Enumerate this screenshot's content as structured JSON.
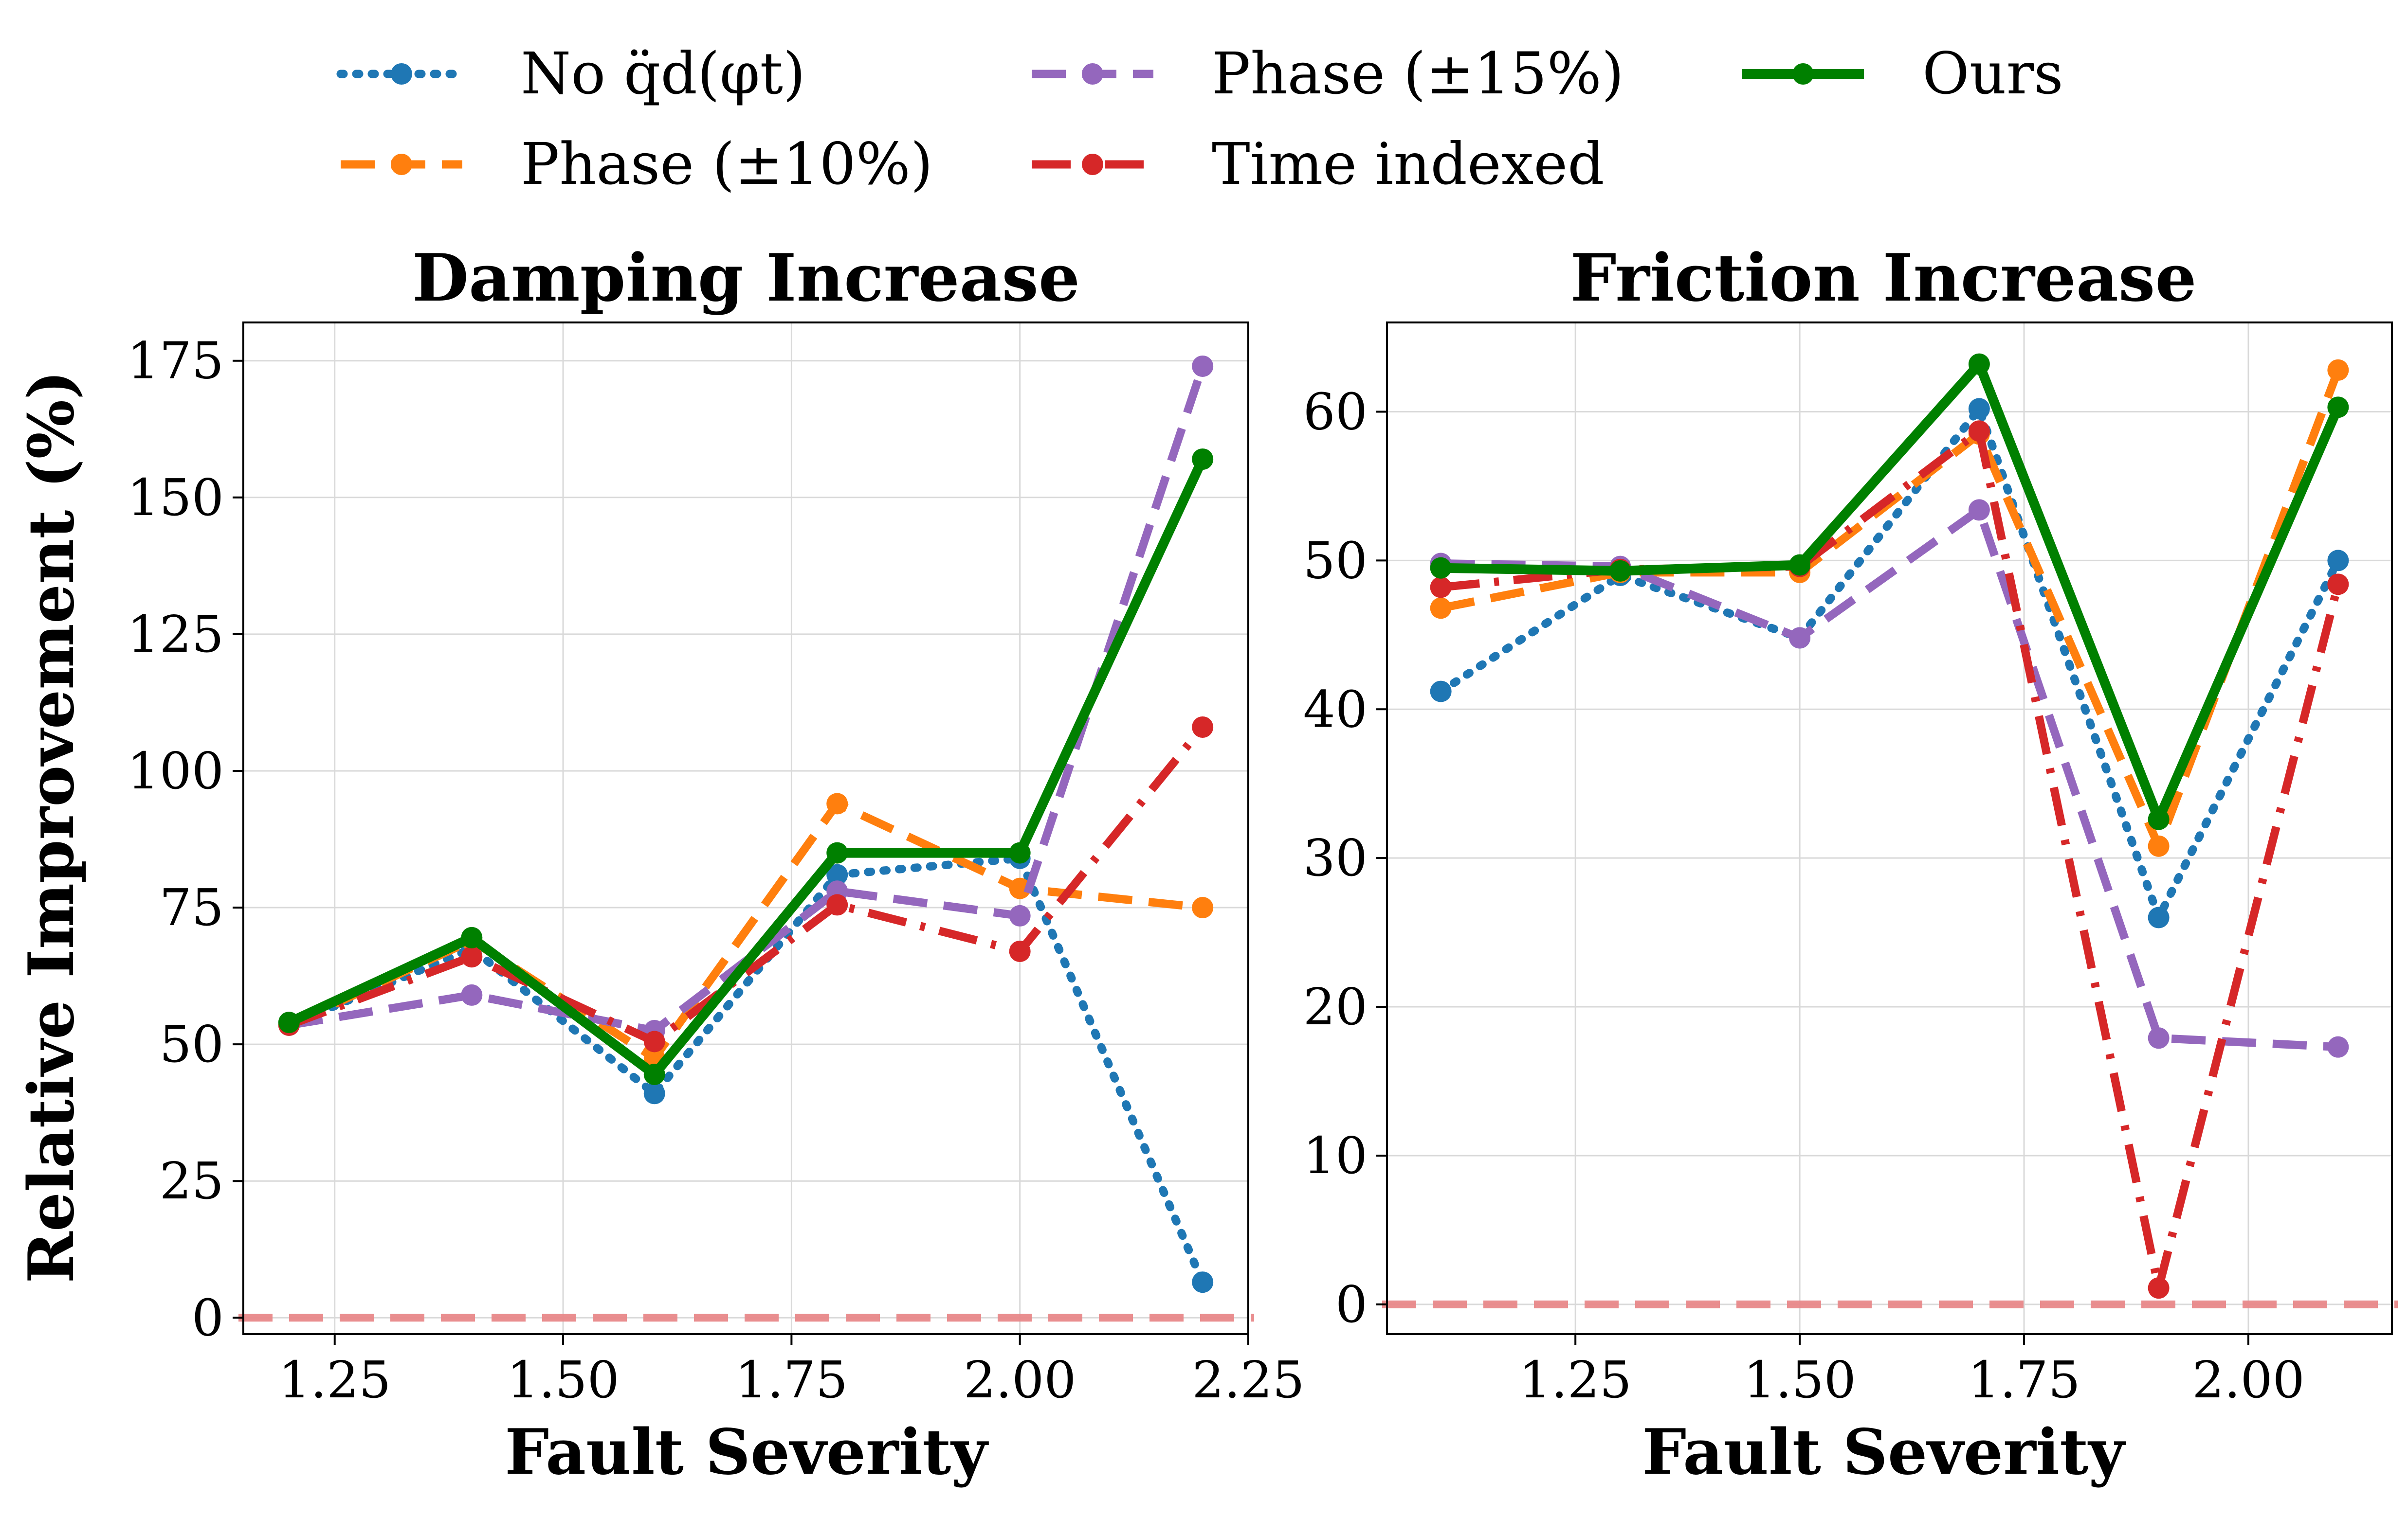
{
  "legend": [
    {
      "label": "No q̈d(φt)",
      "color": "#1f77b4",
      "dash": "dotted"
    },
    {
      "label": "Phase (±10%)",
      "color": "#ff7f0e",
      "dash": "dashed"
    },
    {
      "label": "Phase (±15%)",
      "color": "#9467bd",
      "dash": "dashed"
    },
    {
      "label": "Time indexed",
      "color": "#d62728",
      "dash": "dashdot"
    },
    {
      "label": "Ours",
      "color": "#008000",
      "dash": "solid"
    }
  ],
  "shared": {
    "ylabel": "Relative Improvement (%)",
    "baseline_value": 0,
    "baseline_color": "#e8888a"
  },
  "chart_data": [
    {
      "type": "line",
      "title": "Damping Increase",
      "xlabel": "Fault Severity",
      "ylabel": "Relative Improvement (%)",
      "xlim": [
        1.15,
        2.25
      ],
      "ylim": [
        -3,
        182
      ],
      "xticks": [
        1.25,
        1.5,
        1.75,
        2.0,
        2.25
      ],
      "xtick_labels": [
        "1.25",
        "1.50",
        "1.75",
        "2.00",
        "2.25"
      ],
      "yticks": [
        0,
        25,
        50,
        75,
        100,
        125,
        150,
        175
      ],
      "ytick_labels": [
        "0",
        "25",
        "50",
        "75",
        "100",
        "125",
        "150",
        "175"
      ],
      "x": [
        1.2,
        1.4,
        1.6,
        1.8,
        2.0,
        2.2
      ],
      "series": [
        {
          "name": "No q̈d(φt)",
          "values": [
            53.5,
            67.5,
            41.0,
            81.0,
            84.0,
            6.5
          ]
        },
        {
          "name": "Phase (±10%)",
          "values": [
            53.5,
            69.0,
            47.5,
            94.0,
            78.5,
            75.0
          ]
        },
        {
          "name": "Phase (±15%)",
          "values": [
            53.5,
            59.0,
            52.5,
            78.0,
            73.5,
            174.0
          ]
        },
        {
          "name": "Time indexed",
          "values": [
            53.5,
            66.0,
            50.5,
            75.5,
            67.0,
            108.0
          ]
        },
        {
          "name": "Ours",
          "values": [
            54.0,
            69.5,
            44.5,
            85.0,
            85.0,
            157.0
          ]
        }
      ]
    },
    {
      "type": "line",
      "title": "Friction Increase",
      "xlabel": "Fault Severity",
      "ylabel": "",
      "xlim": [
        1.04,
        2.16
      ],
      "ylim": [
        -2,
        66
      ],
      "xticks": [
        1.25,
        1.5,
        1.75,
        2.0
      ],
      "xtick_labels": [
        "1.25",
        "1.50",
        "1.75",
        "2.00"
      ],
      "yticks": [
        0,
        10,
        20,
        30,
        40,
        50,
        60
      ],
      "ytick_labels": [
        "0",
        "10",
        "20",
        "30",
        "40",
        "50",
        "60"
      ],
      "x": [
        1.1,
        1.3,
        1.5,
        1.7,
        1.9,
        2.1
      ],
      "series": [
        {
          "name": "No q̈d(φt)",
          "values": [
            41.2,
            49.0,
            44.8,
            60.2,
            26.0,
            50.0
          ]
        },
        {
          "name": "Phase (±10%)",
          "values": [
            46.8,
            49.2,
            49.2,
            58.5,
            30.8,
            62.8
          ]
        },
        {
          "name": "Phase (±15%)",
          "values": [
            49.8,
            49.6,
            44.8,
            53.4,
            17.9,
            17.3
          ]
        },
        {
          "name": "Time indexed",
          "values": [
            48.2,
            49.4,
            49.6,
            58.7,
            1.1,
            48.4
          ]
        },
        {
          "name": "Ours",
          "values": [
            49.5,
            49.3,
            49.7,
            63.2,
            32.6,
            60.3
          ]
        }
      ]
    }
  ]
}
